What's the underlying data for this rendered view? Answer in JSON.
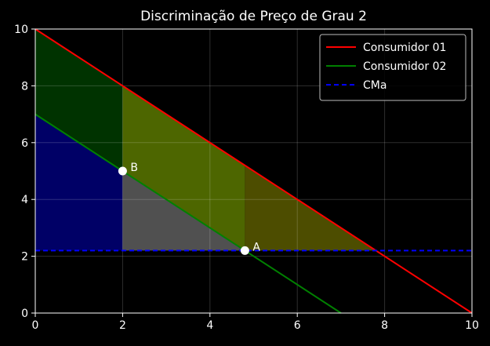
{
  "chart_data": {
    "type": "line",
    "title": "Discriminação de Preço de Grau 2",
    "xlabel": "",
    "ylabel": "",
    "xlim": [
      0,
      10
    ],
    "ylim": [
      0,
      10
    ],
    "xticks": [
      0,
      2,
      4,
      6,
      8,
      10
    ],
    "yticks": [
      0,
      2,
      4,
      6,
      8,
      10
    ],
    "grid": true,
    "legend_position": "top-right",
    "series": [
      {
        "name": "Consumidor 01",
        "x": [
          0,
          10
        ],
        "y": [
          10,
          0
        ],
        "color": "#ff0000",
        "style": "solid"
      },
      {
        "name": "Consumidor 02",
        "x": [
          0,
          7
        ],
        "y": [
          7,
          0
        ],
        "color": "#008000",
        "style": "solid"
      },
      {
        "name": "CMa",
        "x": [
          0,
          10
        ],
        "y": [
          2.2,
          2.2
        ],
        "color": "#0000ff",
        "style": "dashed"
      }
    ],
    "shaded_regions": [
      {
        "id": "blue-area",
        "color": "#000066",
        "points": [
          [
            0,
            7
          ],
          [
            2,
            5
          ],
          [
            2,
            2.2
          ],
          [
            0,
            2.2
          ]
        ]
      },
      {
        "id": "dark-green-area",
        "color": "#003300",
        "points": [
          [
            0,
            10
          ],
          [
            2,
            8
          ],
          [
            2,
            5
          ],
          [
            0,
            7
          ]
        ]
      },
      {
        "id": "olive-green-area",
        "color": "#4d6600",
        "points": [
          [
            2,
            8
          ],
          [
            4.8,
            5.2
          ],
          [
            4.8,
            2.2
          ],
          [
            2,
            5
          ]
        ]
      },
      {
        "id": "gray-area",
        "color": "#505050",
        "points": [
          [
            2,
            5
          ],
          [
            4.8,
            2.2
          ],
          [
            2,
            2.2
          ]
        ]
      },
      {
        "id": "brown-olive-area",
        "color": "#4d4d00",
        "points": [
          [
            4.8,
            5.2
          ],
          [
            7.8,
            2.2
          ],
          [
            4.8,
            2.2
          ]
        ]
      }
    ],
    "points": [
      {
        "label": "A",
        "x": 4.8,
        "y": 2.2
      },
      {
        "label": "B",
        "x": 2,
        "y": 5
      }
    ]
  }
}
